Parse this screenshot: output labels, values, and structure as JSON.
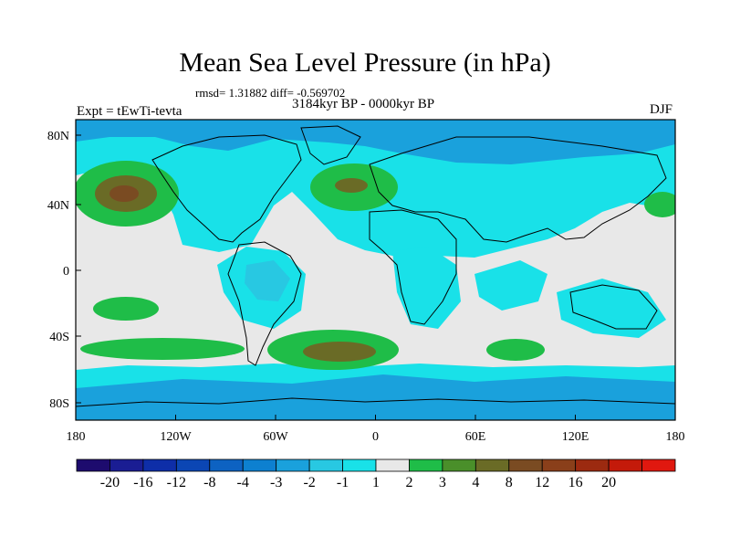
{
  "title": "Mean Sea Level Pressure (in hPa)",
  "stats": "rmsd= 1.31882 diff= -0.569702",
  "experiment": "Expt = tEwTi-tevta",
  "period": "3184kyr BP - 0000kyr BP",
  "season": "DJF",
  "lat_labels": [
    "80N",
    "40N",
    "0",
    "40S",
    "80S"
  ],
  "lon_labels": [
    "180",
    "120W",
    "60W",
    "0",
    "60E",
    "120E",
    "180"
  ],
  "colorbar": {
    "colors": [
      "#1d0b6e",
      "#1a1d93",
      "#0e2ea8",
      "#0b46b4",
      "#0d62c2",
      "#0d80d0",
      "#1aa1dc",
      "#28c8e2",
      "#19e1e8",
      "#e8e8e8",
      "#1fbd48",
      "#4a8f2a",
      "#6a6b26",
      "#7a4b22",
      "#8a3f1a",
      "#9c2a10",
      "#c41a0a",
      "#e0180f"
    ],
    "labels": [
      "-20",
      "-16",
      "-12",
      "-8",
      "-4",
      "-3",
      "-2",
      "-1",
      "1",
      "2",
      "3",
      "4",
      "8",
      "12",
      "16",
      "20"
    ]
  },
  "map_colors": {
    "neutral": "#e8e8e8",
    "cyan": "#19e1e8",
    "light_blue": "#28c8e2",
    "mid_blue": "#1aa1dc",
    "blue": "#0d80d0",
    "green": "#1fbd48",
    "olive": "#6a6b26",
    "brown": "#7a4b22"
  }
}
